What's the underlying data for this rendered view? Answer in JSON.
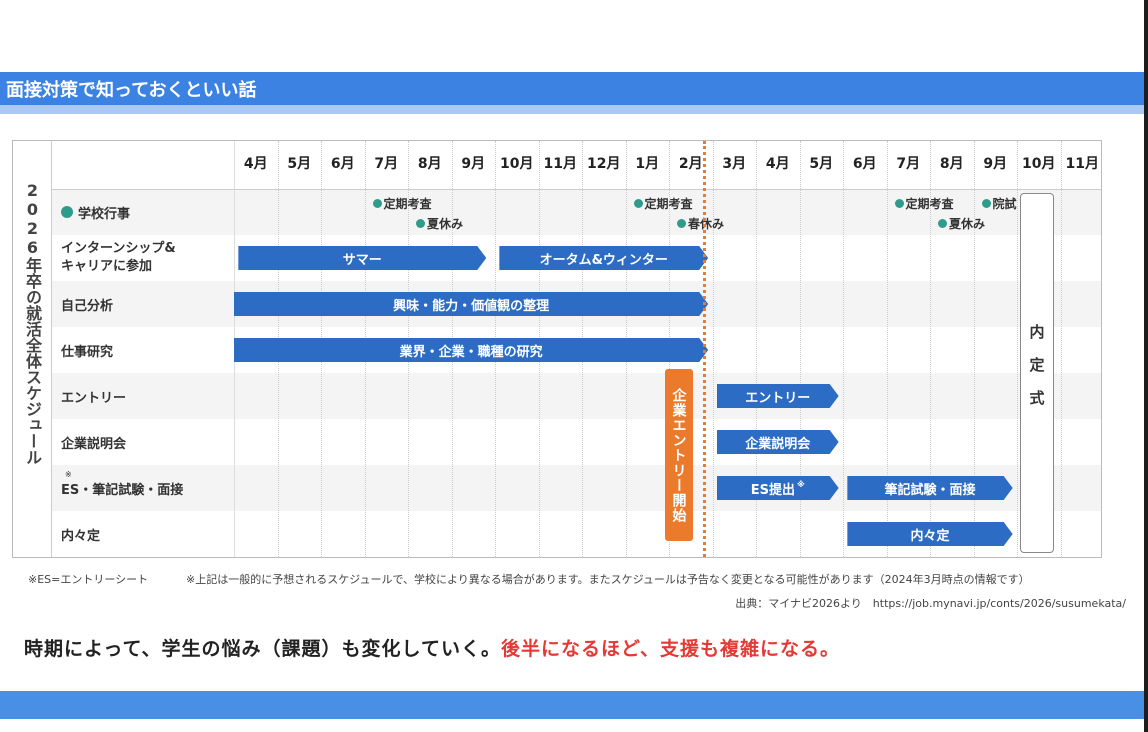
{
  "slide": {
    "title": "面接対策で知っておくといい話",
    "message_black": "時期によって、学生の悩み（課題）も変化していく。",
    "message_red": "後半になるほど、支援も複雑になる。"
  },
  "chart_data": {
    "type": "table",
    "side_label": "2026年卒の就活全体スケジュール",
    "months": [
      "4月",
      "5月",
      "6月",
      "7月",
      "8月",
      "9月",
      "10月",
      "11月",
      "12月",
      "1月",
      "2月",
      "3月",
      "4月",
      "5月",
      "6月",
      "7月",
      "8月",
      "9月",
      "10月",
      "11月"
    ],
    "rows": [
      {
        "label": "学校行事"
      },
      {
        "label": "インターンシップ&",
        "label2": "キャリアに参加"
      },
      {
        "label": "自己分析"
      },
      {
        "label": "仕事研究"
      },
      {
        "label": "エントリー"
      },
      {
        "label": "企業説明会"
      },
      {
        "label": "ES・筆記試験・面接",
        "mark": "※"
      },
      {
        "label": "内々定"
      }
    ],
    "events": [
      {
        "text": "定期考査",
        "month_index": 3,
        "line": 1
      },
      {
        "text": "夏休み",
        "month_index": 4,
        "line": 2
      },
      {
        "text": "定期考査",
        "month_index": 9,
        "line": 1
      },
      {
        "text": "春休み",
        "month_index": 10,
        "line": 2
      },
      {
        "text": "定期考査",
        "month_index": 15,
        "line": 1
      },
      {
        "text": "院試",
        "month_index": 17,
        "line": 1
      },
      {
        "text": "夏休み",
        "month_index": 16,
        "line": 2
      }
    ],
    "bars": [
      {
        "row": 1,
        "text": "サマー",
        "start": 0.1,
        "end": 5.8
      },
      {
        "row": 1,
        "text": "オータム&ウィンター",
        "start": 6.1,
        "end": 10.9
      },
      {
        "row": 2,
        "text": "興味・能力・価値観の整理",
        "start": 0.0,
        "end": 10.9
      },
      {
        "row": 3,
        "text": "業界・企業・職種の研究",
        "start": 0.0,
        "end": 10.9
      },
      {
        "row": 4,
        "text": "エントリー",
        "start": 11.1,
        "end": 13.9
      },
      {
        "row": 5,
        "text": "企業説明会",
        "start": 11.1,
        "end": 13.9
      },
      {
        "row": 6,
        "text": "ES提出",
        "mark": "※",
        "start": 11.1,
        "end": 13.9
      },
      {
        "row": 6,
        "text": "筆記試験・面接",
        "start": 14.1,
        "end": 17.9
      },
      {
        "row": 7,
        "text": "内々定",
        "start": 14.1,
        "end": 17.9
      }
    ],
    "entry_start_label": "企業エントリー開始",
    "naitei_label": "内定式",
    "footnote_es": "※ES=エントリーシート",
    "footnote_note": "※上記は一般的に予想されるスケジュールで、学校により異なる場合があります。またスケジュールは予告なく変更となる可能性があります（2024年3月時点の情報です）",
    "source": "出典：マイナビ2026より　https://job.mynavi.jp/conts/2026/susumekata/",
    "colors": {
      "bar": "#2d6cc4",
      "orange": "#ec7a2c",
      "dot": "#2f9c8b",
      "alt_row": "#f4f4f4"
    }
  }
}
